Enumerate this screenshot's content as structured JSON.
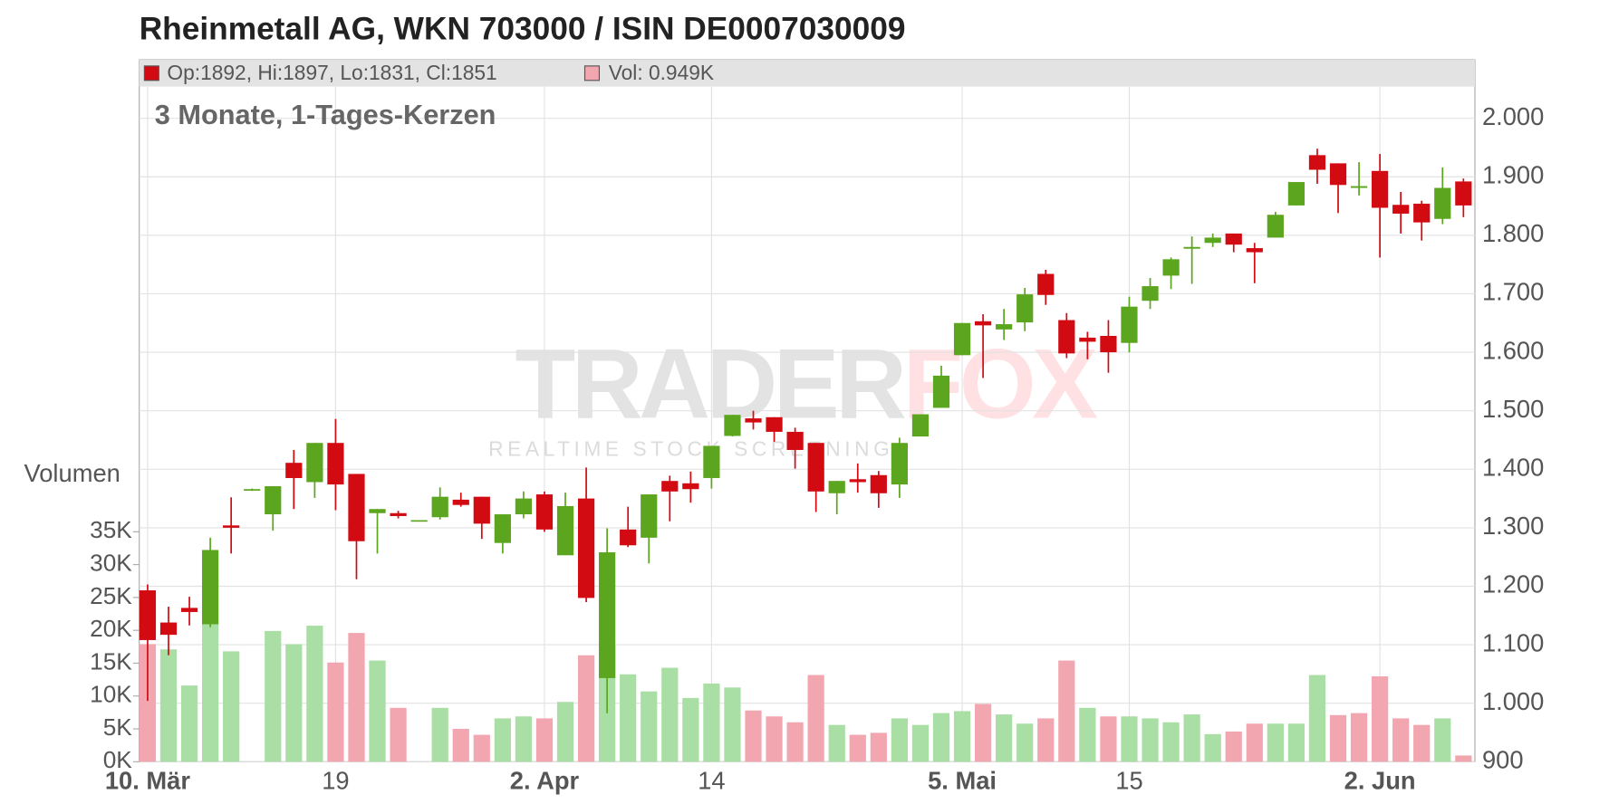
{
  "chart_data": {
    "type": "candlestick",
    "title": "Rheinmetall AG, WKN 703000 / ISIN DE0007030009",
    "subtitle": "3 Monate, 1-Tages-Kerzen",
    "legend": {
      "ohlc": "Op:1892, Hi:1897, Lo:1831, Cl:1851",
      "volume": "Vol: 0.949K"
    },
    "watermark": [
      "TRADER",
      "FOX"
    ],
    "watermark_sub": "REALTIME STOCK SCREENING",
    "volume_label": "Volumen",
    "categories": [
      "10. Mär",
      null,
      null,
      null,
      null,
      null,
      null,
      null,
      null,
      "19",
      null,
      null,
      null,
      null,
      null,
      null,
      null,
      null,
      null,
      "2. Apr",
      null,
      null,
      null,
      null,
      null,
      null,
      null,
      "14",
      null,
      null,
      null,
      null,
      null,
      null,
      null,
      null,
      null,
      null,
      null,
      "5. Mai",
      null,
      null,
      null,
      null,
      null,
      null,
      null,
      "15",
      null,
      null,
      null,
      null,
      null,
      null,
      null,
      null,
      null,
      null,
      null,
      "2. Jun",
      null,
      null,
      null,
      null
    ],
    "open": [
      1193,
      1138,
      1163,
      1135,
      1304,
      1364,
      1323,
      1411,
      1378,
      1445,
      1392,
      1325,
      1325,
      1312,
      1318,
      1348,
      1353,
      1274,
      1323,
      1357,
      1253,
      1350,
      1043,
      1297,
      1283,
      1380,
      1376,
      1385,
      1457,
      1487,
      1489,
      1464,
      1445,
      1359,
      1383,
      1390,
      1374,
      1456,
      1505,
      1595,
      1653,
      1639,
      1651,
      1734,
      1655,
      1625,
      1628,
      1616,
      1688,
      1731,
      1777,
      1787,
      1803,
      1778,
      1796,
      1851,
      1937,
      1923,
      1881,
      1910,
      1852,
      1854,
      1828,
      1892
    ],
    "high": [
      1203,
      1165,
      1182,
      1283,
      1352,
      1367,
      1371,
      1433,
      1445,
      1486,
      1392,
      1332,
      1329,
      1313,
      1369,
      1360,
      1353,
      1323,
      1362,
      1362,
      1360,
      1403,
      1299,
      1336,
      1357,
      1389,
      1396,
      1440,
      1493,
      1500,
      1489,
      1471,
      1445,
      1380,
      1410,
      1397,
      1454,
      1494,
      1577,
      1650,
      1665,
      1674,
      1710,
      1741,
      1667,
      1635,
      1655,
      1695,
      1727,
      1762,
      1798,
      1803,
      1803,
      1787,
      1840,
      1891,
      1948,
      1923,
      1925,
      1939,
      1874,
      1859,
      1916,
      1897
    ],
    "low": [
      1004,
      1082,
      1133,
      1130,
      1256,
      1363,
      1295,
      1332,
      1351,
      1330,
      1212,
      1256,
      1316,
      1311,
      1314,
      1336,
      1281,
      1256,
      1316,
      1293,
      1253,
      1173,
      983,
      1267,
      1239,
      1311,
      1343,
      1367,
      1456,
      1468,
      1447,
      1401,
      1327,
      1323,
      1360,
      1334,
      1351,
      1456,
      1505,
      1595,
      1556,
      1621,
      1636,
      1681,
      1590,
      1588,
      1565,
      1600,
      1674,
      1708,
      1717,
      1780,
      1771,
      1718,
      1796,
      1851,
      1888,
      1838,
      1868,
      1762,
      1803,
      1791,
      1819,
      1831
    ],
    "close": [
      1108,
      1117,
      1156,
      1262,
      1300,
      1366,
      1371,
      1385,
      1445,
      1374,
      1277,
      1332,
      1320,
      1313,
      1353,
      1339,
      1307,
      1323,
      1350,
      1297,
      1337,
      1180,
      1258,
      1270,
      1357,
      1362,
      1366,
      1440,
      1493,
      1480,
      1464,
      1433,
      1362,
      1380,
      1378,
      1359,
      1445,
      1494,
      1560,
      1650,
      1646,
      1648,
      1699,
      1698,
      1598,
      1618,
      1600,
      1678,
      1713,
      1759,
      1780,
      1796,
      1784,
      1771,
      1835,
      1891,
      1912,
      1886,
      1884,
      1847,
      1837,
      1822,
      1881,
      1851
    ],
    "volume": [
      17900,
      17100,
      11600,
      21000,
      16800,
      null,
      19900,
      17900,
      20700,
      15100,
      19600,
      15400,
      8200,
      null,
      8200,
      5000,
      4100,
      6600,
      6900,
      6600,
      9100,
      16200,
      17600,
      13300,
      10700,
      14300,
      9700,
      11900,
      11300,
      7800,
      6900,
      6000,
      13200,
      5600,
      4100,
      4400,
      6600,
      5600,
      7400,
      7700,
      8800,
      7200,
      5800,
      6600,
      15400,
      8200,
      6900,
      6900,
      6600,
      6000,
      7200,
      4200,
      4600,
      5800,
      5800,
      5800,
      13200,
      7100,
      7400,
      13000,
      6600,
      5600,
      6600,
      949
    ],
    "up_color": "#5ba61e",
    "down_color": "#d20a11",
    "volume_up_color": "#a9dea4",
    "volume_down_color": "#f2a6b0",
    "ylim": [
      900,
      2100
    ],
    "yticks": [
      900,
      {
        "value": 1000,
        "label": "1.000"
      },
      {
        "value": 1100,
        "label": "1.100"
      },
      {
        "value": 1200,
        "label": "1.200"
      },
      {
        "value": 1300,
        "label": "1.300"
      },
      {
        "value": 1400,
        "label": "1.400"
      },
      {
        "value": 1500,
        "label": "1.500"
      },
      {
        "value": 1600,
        "label": "1.600"
      },
      {
        "value": 1700,
        "label": "1.700"
      },
      {
        "value": 1800,
        "label": "1.800"
      },
      {
        "value": 1900,
        "label": "1.900"
      },
      {
        "value": 2000,
        "label": "2.000"
      }
    ],
    "y2lim": [
      0,
      40000
    ],
    "y2ticks": [
      {
        "value": 0,
        "label": "0K"
      },
      {
        "value": 5000,
        "label": "5K"
      },
      {
        "value": 10000,
        "label": "10K"
      },
      {
        "value": 15000,
        "label": "15K"
      },
      {
        "value": 20000,
        "label": "20K"
      },
      {
        "value": 25000,
        "label": "25K"
      },
      {
        "value": 30000,
        "label": "30K"
      },
      {
        "value": 35000,
        "label": "35K"
      }
    ],
    "grid": true
  }
}
